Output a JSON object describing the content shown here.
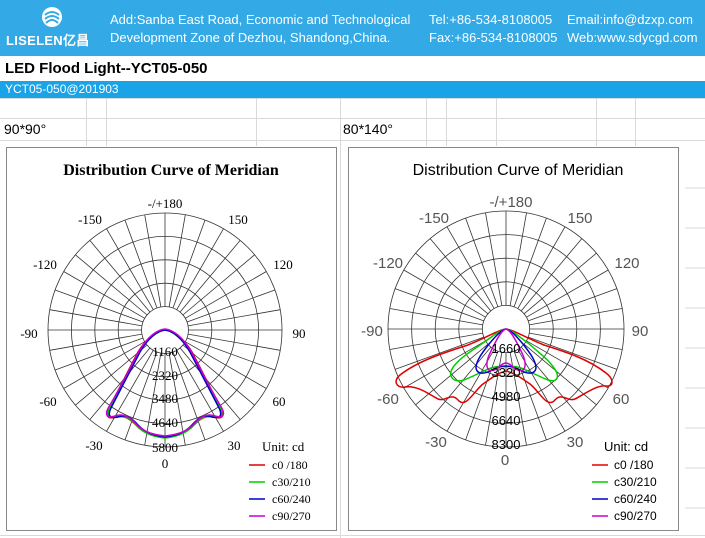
{
  "header": {
    "logo_text": "LISELEN亿昌",
    "address_line1": "Add:Sanba East Road, Economic and Technological",
    "address_line2": "Development Zone of Dezhou, Shandong,China.",
    "tel": "Tel:+86-534-8108005",
    "fax": "Fax:+86-534-8108005",
    "email": "Email:info@dzxp.com",
    "web": "Web:www.sdycgd.com"
  },
  "product": {
    "title": "LED Flood Light--YCT05-050",
    "code": "YCT05-050@201903"
  },
  "colors": {
    "header_bg": "#33a9e6",
    "code_bar": "#1aa3e6",
    "c0": "#e00000",
    "c30": "#00cc00",
    "c60": "#0000cc",
    "c90": "#cc00cc"
  },
  "panels": [
    {
      "beam_label": "90*90°",
      "title": "Distribution Curve of  Meridian",
      "unit": "Unit: cd",
      "angle_labels": {
        "top": "-/+180",
        "m150": "-150",
        "p150": "150",
        "m120": "-120",
        "p120": "120",
        "m90": "-90",
        "p90": "90",
        "m60": "-60",
        "p60": "60",
        "m30": "-30",
        "p30": "30",
        "zero": "0"
      },
      "rings": [
        "1160",
        "2320",
        "3480",
        "4640",
        "5800"
      ],
      "legend": [
        "c0 /180",
        "c30/210",
        "c60/240",
        "c90/270"
      ]
    },
    {
      "beam_label": "80*140°",
      "title": "Distribution Curve of  Meridian",
      "unit": "Unit: cd",
      "angle_labels": {
        "top": "-/+180",
        "m150": "-150",
        "p150": "150",
        "m120": "-120",
        "p120": "120",
        "m90": "-90",
        "p90": "90",
        "m60": "-60",
        "p60": "60",
        "m30": "-30",
        "p30": "30",
        "zero": "0"
      },
      "rings": [
        "1660",
        "3320",
        "4980",
        "6640",
        "8300"
      ],
      "legend": [
        "c0 /180",
        "c30/210",
        "c60/240",
        "c90/270"
      ]
    }
  ]
}
